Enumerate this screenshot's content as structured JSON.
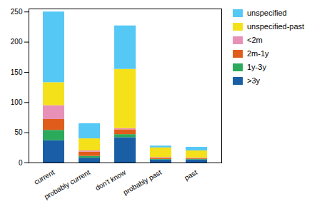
{
  "chart_data": {
    "type": "bar",
    "stacked": true,
    "grid": false,
    "legend": "right",
    "categories": [
      "current",
      "probably current",
      "don't know",
      "probably past",
      "past"
    ],
    "series": [
      {
        "name": ">3y",
        "color": "#1a5fa6",
        "values": [
          37,
          8,
          42,
          5,
          5
        ]
      },
      {
        "name": "1y-3y",
        "color": "#2aaa5a",
        "values": [
          17,
          3,
          5,
          1,
          1
        ]
      },
      {
        "name": "2m-1y",
        "color": "#e05c1a",
        "values": [
          18,
          7,
          8,
          2,
          1
        ]
      },
      {
        "name": "<2m",
        "color": "#e891b8",
        "values": [
          23,
          2,
          2,
          1,
          1
        ]
      },
      {
        "name": "unspecified-past",
        "color": "#f5e11a",
        "values": [
          38,
          20,
          98,
          16,
          12
        ]
      },
      {
        "name": "unspecified",
        "color": "#55c8f5",
        "values": [
          117,
          25,
          72,
          3,
          6
        ]
      }
    ],
    "ylim": [
      0,
      255
    ],
    "yticks": [
      0,
      50,
      100,
      150,
      200,
      250
    ]
  }
}
